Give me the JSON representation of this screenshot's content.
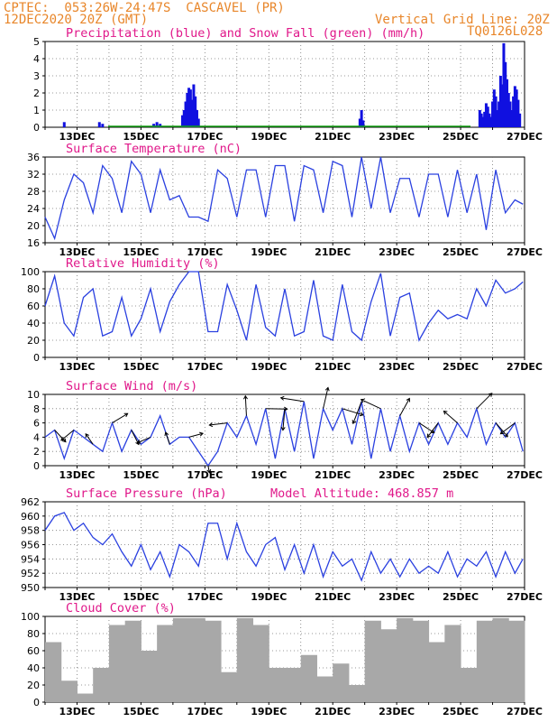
{
  "header": {
    "line1": "CPTEC:  053:26W-24:47S  CASCAVEL (PR)",
    "line2": "12DEC2020 20Z (GMT)",
    "right1": "Vertical Grid Line: 20Z",
    "right2": "TQ0126L028"
  },
  "colors": {
    "rain": "#1010e0",
    "snow": "#10a010",
    "line": "#2a40e0",
    "cloud": "#a8a8a8",
    "title": "#e0188a",
    "header": "#e8862a"
  },
  "x_ticks": [
    "13DEC",
    "15DEC",
    "17DEC",
    "19DEC",
    "21DEC",
    "23DEC",
    "25DEC",
    "27DEC"
  ],
  "chart_data": [
    {
      "type": "bar",
      "title": "Precipitation (blue) and Snow Fall (green) (mm/h)",
      "ylim": [
        0,
        5
      ],
      "yticks": [
        0,
        1,
        2,
        3,
        4,
        5
      ],
      "series": [
        {
          "name": "Precipitation",
          "x_days": [
            0.6,
            1.7,
            1.8,
            3.4,
            3.5,
            3.6,
            4.3,
            4.35,
            4.4,
            4.45,
            4.5,
            4.55,
            4.6,
            4.65,
            4.7,
            4.75,
            4.8,
            9.85,
            9.9,
            9.95,
            13.6,
            13.65,
            13.7,
            13.75,
            13.8,
            13.85,
            13.9,
            13.95,
            14.0,
            14.05,
            14.1,
            14.15,
            14.2,
            14.25,
            14.3,
            14.35,
            14.4,
            14.45,
            14.5,
            14.55,
            14.6,
            14.65,
            14.7,
            14.75,
            14.8,
            14.85
          ],
          "values": [
            0.3,
            0.3,
            0.2,
            0.2,
            0.3,
            0.2,
            0.7,
            1.0,
            1.5,
            2.0,
            2.3,
            2.2,
            1.6,
            2.5,
            1.8,
            1.0,
            0.5,
            0.5,
            1.0,
            0.4,
            1.0,
            0.8,
            0.6,
            0.9,
            1.4,
            1.2,
            0.8,
            0.6,
            1.5,
            2.2,
            1.8,
            1.0,
            1.5,
            3.0,
            2.5,
            4.9,
            3.8,
            2.8,
            2.0,
            1.5,
            1.0,
            1.8,
            2.4,
            2.2,
            1.6,
            0.8
          ]
        },
        {
          "name": "Snow Fall",
          "values": []
        }
      ]
    },
    {
      "type": "line",
      "title": "Surface Temperature (nC)",
      "ylim": [
        16,
        36
      ],
      "yticks": [
        16,
        20,
        24,
        28,
        32,
        36
      ],
      "x_days": [
        0,
        0.3,
        0.6,
        0.9,
        1.2,
        1.5,
        1.8,
        2.1,
        2.4,
        2.7,
        3.0,
        3.3,
        3.6,
        3.9,
        4.2,
        4.5,
        4.8,
        5.1,
        5.4,
        5.7,
        6.0,
        6.3,
        6.6,
        6.9,
        7.2,
        7.5,
        7.8,
        8.1,
        8.4,
        8.7,
        9.0,
        9.3,
        9.6,
        9.9,
        10.2,
        10.5,
        10.8,
        11.1,
        11.4,
        11.7,
        12.0,
        12.3,
        12.6,
        12.9,
        13.2,
        13.5,
        13.8,
        14.1,
        14.4,
        14.7,
        14.95
      ],
      "values": [
        22,
        17,
        26,
        32,
        30,
        23,
        34,
        31,
        23,
        35,
        32,
        23,
        33,
        26,
        27,
        22,
        22,
        21,
        33,
        31,
        22,
        33,
        33,
        22,
        34,
        34,
        21,
        34,
        33,
        23,
        35,
        34,
        22,
        36,
        24,
        36,
        23,
        31,
        31,
        22,
        32,
        32,
        22,
        33,
        23,
        32,
        19,
        33,
        23,
        26,
        25
      ]
    },
    {
      "type": "line",
      "title": "Relative Humidity (%)",
      "ylim": [
        0,
        100
      ],
      "yticks": [
        0,
        20,
        40,
        60,
        80,
        100
      ],
      "x_days": [
        0,
        0.3,
        0.6,
        0.9,
        1.2,
        1.5,
        1.8,
        2.1,
        2.4,
        2.7,
        3.0,
        3.3,
        3.6,
        3.9,
        4.2,
        4.5,
        4.8,
        5.1,
        5.4,
        5.7,
        6.0,
        6.3,
        6.6,
        6.9,
        7.2,
        7.5,
        7.8,
        8.1,
        8.4,
        8.7,
        9.0,
        9.3,
        9.6,
        9.9,
        10.2,
        10.5,
        10.8,
        11.1,
        11.4,
        11.7,
        12.0,
        12.3,
        12.6,
        12.9,
        13.2,
        13.5,
        13.8,
        14.1,
        14.4,
        14.7,
        14.95
      ],
      "values": [
        60,
        95,
        40,
        25,
        70,
        80,
        25,
        30,
        70,
        25,
        45,
        80,
        30,
        65,
        85,
        100,
        100,
        30,
        30,
        85,
        55,
        20,
        85,
        35,
        25,
        80,
        25,
        30,
        90,
        25,
        20,
        85,
        30,
        20,
        65,
        98,
        25,
        70,
        75,
        20,
        40,
        55,
        45,
        50,
        45,
        80,
        60,
        90,
        75,
        80,
        88
      ]
    },
    {
      "type": "line",
      "title": "Surface Wind (m/s)",
      "ylim": [
        0,
        10
      ],
      "yticks": [
        0,
        2,
        4,
        6,
        8,
        10
      ],
      "x_days": [
        0,
        0.3,
        0.6,
        0.9,
        1.2,
        1.5,
        1.8,
        2.1,
        2.4,
        2.7,
        3.0,
        3.3,
        3.6,
        3.9,
        4.2,
        4.5,
        4.8,
        5.1,
        5.4,
        5.7,
        6.0,
        6.3,
        6.6,
        6.9,
        7.2,
        7.5,
        7.8,
        8.1,
        8.4,
        8.7,
        9.0,
        9.3,
        9.6,
        9.9,
        10.2,
        10.5,
        10.8,
        11.1,
        11.4,
        11.7,
        12.0,
        12.3,
        12.6,
        12.9,
        13.2,
        13.5,
        13.8,
        14.1,
        14.4,
        14.7,
        14.95
      ],
      "values": [
        4,
        5,
        1,
        5,
        4,
        3,
        2,
        6,
        2,
        5,
        3,
        4,
        7,
        3,
        4,
        4,
        2,
        0,
        2,
        6,
        4,
        7,
        3,
        8,
        1,
        8,
        2,
        9,
        1,
        8,
        5,
        8,
        3,
        9,
        1,
        8,
        2,
        7,
        2,
        6,
        3,
        6,
        3,
        6,
        4,
        8,
        3,
        6,
        4,
        6,
        2
      ]
    },
    {
      "type": "line",
      "title": "Surface Pressure (hPa)",
      "annotation": "Model Altitude: 468.857 m",
      "ylim": [
        950,
        962
      ],
      "yticks": [
        950,
        952,
        954,
        956,
        958,
        960,
        962
      ],
      "x_days": [
        0,
        0.3,
        0.6,
        0.9,
        1.2,
        1.5,
        1.8,
        2.1,
        2.4,
        2.7,
        3.0,
        3.3,
        3.6,
        3.9,
        4.2,
        4.5,
        4.8,
        5.1,
        5.4,
        5.7,
        6.0,
        6.3,
        6.6,
        6.9,
        7.2,
        7.5,
        7.8,
        8.1,
        8.4,
        8.7,
        9.0,
        9.3,
        9.6,
        9.9,
        10.2,
        10.5,
        10.8,
        11.1,
        11.4,
        11.7,
        12.0,
        12.3,
        12.6,
        12.9,
        13.2,
        13.5,
        13.8,
        14.1,
        14.4,
        14.7,
        14.95
      ],
      "values": [
        958,
        960,
        960.5,
        958,
        959,
        957,
        956,
        957.5,
        955,
        953,
        956,
        952.5,
        955,
        951.5,
        956,
        955,
        953,
        959,
        959,
        954,
        959,
        955,
        953,
        956,
        957,
        952.5,
        956,
        952,
        956,
        951.5,
        955,
        953,
        954,
        951,
        955,
        952,
        954,
        951.5,
        954,
        952,
        953,
        952,
        955,
        951.5,
        954,
        953,
        955,
        951.5,
        955,
        952,
        954
      ]
    },
    {
      "type": "bar",
      "title": "Cloud Cover (%)",
      "ylim": [
        0,
        100
      ],
      "yticks": [
        0,
        20,
        40,
        60,
        80,
        100
      ],
      "x_days": [
        0,
        0.5,
        1.0,
        1.5,
        2.0,
        2.5,
        3.0,
        3.5,
        4.0,
        4.5,
        5.0,
        5.5,
        6.0,
        6.5,
        7.0,
        7.5,
        8.0,
        8.5,
        9.0,
        9.5,
        10.0,
        10.5,
        11.0,
        11.5,
        12.0,
        12.5,
        13.0,
        13.5,
        14.0,
        14.5
      ],
      "values": [
        70,
        25,
        10,
        40,
        90,
        95,
        60,
        90,
        98,
        98,
        95,
        35,
        98,
        90,
        40,
        40,
        55,
        30,
        45,
        20,
        95,
        85,
        98,
        95,
        70,
        90,
        40,
        95,
        98,
        95
      ]
    }
  ]
}
